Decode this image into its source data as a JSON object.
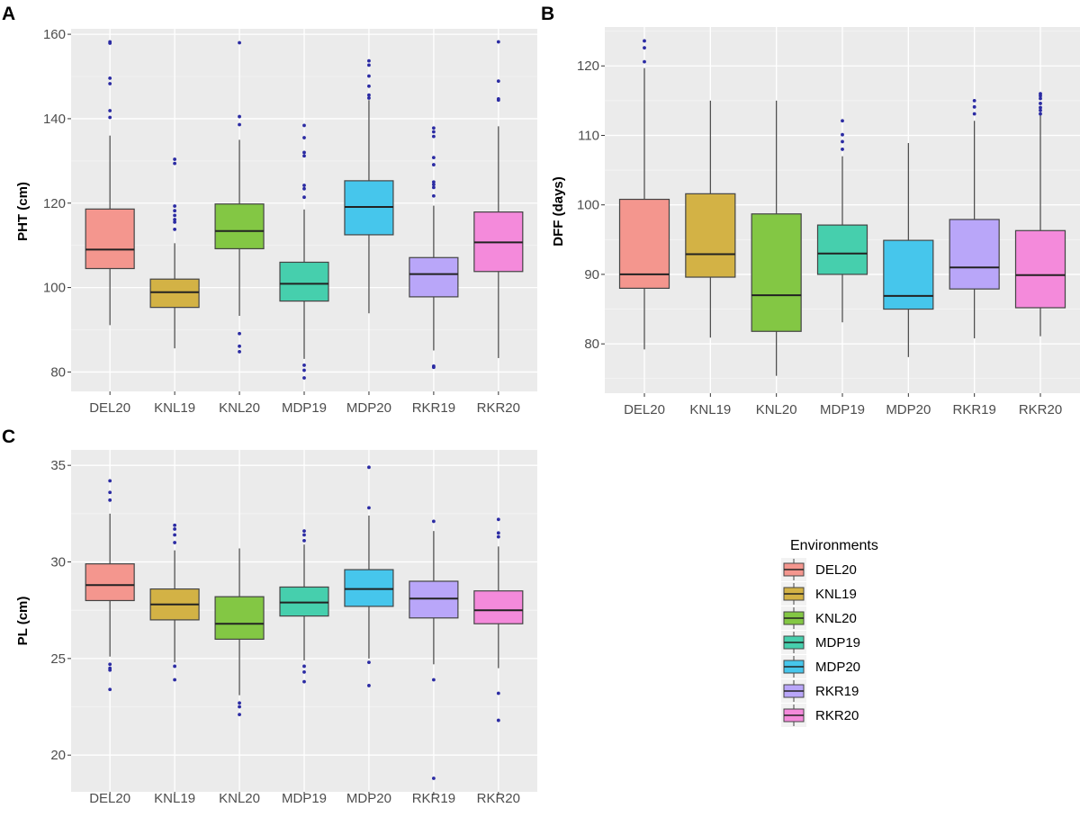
{
  "legend": {
    "title": "Environments",
    "position": "right",
    "items": [
      "DEL20",
      "KNL19",
      "KNL20",
      "MDP19",
      "MDP20",
      "RKR19",
      "RKR20"
    ]
  },
  "colors": {
    "DEL20": "#F4968E",
    "KNL19": "#D3B245",
    "KNL20": "#83C744",
    "MDP19": "#46CFAD",
    "MDP20": "#46C6EC",
    "RKR19": "#B9A6F9",
    "RKR20": "#F48ADB",
    "outlier": "#2B2BA3",
    "panel_bg": "#EBEBEB",
    "grid": "#FFFFFF",
    "box_line": "#444444"
  },
  "chart_data": [
    {
      "type": "boxplot",
      "panel_label": "A",
      "ylabel": "PHT (cm)",
      "xlabel": "",
      "ylim": [
        75.4,
        161.3
      ],
      "yticks": [
        80,
        100,
        120,
        140,
        160
      ],
      "grid": true,
      "categories": [
        "DEL20",
        "KNL19",
        "KNL20",
        "MDP19",
        "MDP20",
        "RKR19",
        "RKR20"
      ],
      "boxes": [
        {
          "min": 91.1,
          "q1": 104.5,
          "median": 109.0,
          "q3": 118.6,
          "max": 136.0,
          "outliers": [
            158.2,
            157.9,
            149.6,
            148.3,
            141.9,
            140.3
          ]
        },
        {
          "min": 85.6,
          "q1": 95.3,
          "median": 98.9,
          "q3": 102.0,
          "max": 110.5,
          "outliers": [
            130.4,
            129.4,
            119.3,
            118.2,
            117.1,
            116.1,
            115.5,
            113.8
          ]
        },
        {
          "min": 93.3,
          "q1": 109.2,
          "median": 113.4,
          "q3": 119.8,
          "max": 135.0,
          "outliers": [
            158.0,
            140.5,
            138.6,
            89.1,
            86.1,
            84.8
          ]
        },
        {
          "min": 83.1,
          "q1": 96.8,
          "median": 100.9,
          "q3": 106.0,
          "max": 118.5,
          "outliers": [
            138.4,
            135.5,
            132.0,
            131.2,
            124.2,
            123.4,
            121.4,
            81.6,
            80.4,
            78.6
          ]
        },
        {
          "min": 93.9,
          "q1": 112.5,
          "median": 119.1,
          "q3": 125.3,
          "max": 144.4,
          "outliers": [
            153.7,
            152.7,
            150.1,
            147.7,
            145.6,
            144.9
          ]
        },
        {
          "min": 85.1,
          "q1": 97.8,
          "median": 103.2,
          "q3": 107.1,
          "max": 119.4,
          "outliers": [
            137.8,
            136.9,
            135.8,
            130.8,
            129.1,
            125.0,
            124.4,
            123.7,
            121.7,
            81.4,
            81.1
          ]
        },
        {
          "min": 83.3,
          "q1": 103.8,
          "median": 110.7,
          "q3": 117.9,
          "max": 138.2,
          "outliers": [
            158.2,
            148.9,
            144.7,
            144.4
          ]
        }
      ]
    },
    {
      "type": "boxplot",
      "panel_label": "B",
      "ylabel": "DFF (days)",
      "xlabel": "",
      "ylim": [
        72.9,
        125.6
      ],
      "yticks": [
        80,
        90,
        100,
        110,
        120
      ],
      "grid": true,
      "categories": [
        "DEL20",
        "KNL19",
        "KNL20",
        "MDP19",
        "MDP20",
        "RKR19",
        "RKR20"
      ],
      "boxes": [
        {
          "min": 79.2,
          "q1": 88.0,
          "median": 90.0,
          "q3": 100.8,
          "max": 119.7,
          "outliers": [
            123.6,
            122.6,
            120.6
          ]
        },
        {
          "min": 80.9,
          "q1": 89.6,
          "median": 92.9,
          "q3": 101.6,
          "max": 115.0,
          "outliers": []
        },
        {
          "min": 75.4,
          "q1": 81.8,
          "median": 87.0,
          "q3": 98.7,
          "max": 115.0,
          "outliers": []
        },
        {
          "min": 83.1,
          "q1": 90.0,
          "median": 93.0,
          "q3": 97.1,
          "max": 107.0,
          "outliers": [
            112.1,
            110.1,
            109.1,
            108.0
          ]
        },
        {
          "min": 78.1,
          "q1": 85.0,
          "median": 86.9,
          "q3": 94.9,
          "max": 108.9,
          "outliers": []
        },
        {
          "min": 80.8,
          "q1": 87.9,
          "median": 91.0,
          "q3": 97.9,
          "max": 112.1,
          "outliers": [
            115.0,
            114.1,
            113.1
          ]
        },
        {
          "min": 81.1,
          "q1": 85.2,
          "median": 89.9,
          "q3": 96.3,
          "max": 112.9,
          "outliers": [
            116.0,
            115.7,
            115.3,
            114.6,
            114.0,
            113.6,
            113.1
          ]
        }
      ]
    },
    {
      "type": "boxplot",
      "panel_label": "C",
      "ylabel": "PL (cm)",
      "xlabel": "",
      "ylim": [
        18.1,
        35.8
      ],
      "yticks": [
        20,
        25,
        30,
        35
      ],
      "grid": true,
      "categories": [
        "DEL20",
        "KNL19",
        "KNL20",
        "MDP19",
        "MDP20",
        "RKR19",
        "RKR20"
      ],
      "boxes": [
        {
          "min": 25.1,
          "q1": 28.0,
          "median": 28.8,
          "q3": 29.9,
          "max": 32.5,
          "outliers": [
            34.2,
            33.6,
            33.2,
            24.7,
            24.5,
            24.4,
            23.4
          ]
        },
        {
          "min": 24.8,
          "q1": 27.0,
          "median": 27.8,
          "q3": 28.6,
          "max": 30.6,
          "outliers": [
            31.9,
            31.7,
            31.4,
            31.0,
            24.6,
            23.9
          ]
        },
        {
          "min": 23.1,
          "q1": 26.0,
          "median": 26.8,
          "q3": 28.2,
          "max": 30.7,
          "outliers": [
            22.7,
            22.5,
            22.1
          ]
        },
        {
          "min": 24.9,
          "q1": 27.2,
          "median": 27.9,
          "q3": 28.7,
          "max": 30.9,
          "outliers": [
            31.6,
            31.4,
            31.1,
            24.6,
            24.3,
            23.8
          ]
        },
        {
          "min": 25.0,
          "q1": 27.7,
          "median": 28.6,
          "q3": 29.6,
          "max": 32.4,
          "outliers": [
            34.9,
            32.8,
            24.8,
            23.6
          ]
        },
        {
          "min": 24.7,
          "q1": 27.1,
          "median": 28.1,
          "q3": 29.0,
          "max": 31.6,
          "outliers": [
            32.1,
            23.9,
            18.8
          ]
        },
        {
          "min": 24.5,
          "q1": 26.8,
          "median": 27.5,
          "q3": 28.5,
          "max": 30.8,
          "outliers": [
            32.2,
            31.5,
            31.3,
            23.2,
            21.8
          ]
        }
      ]
    }
  ]
}
